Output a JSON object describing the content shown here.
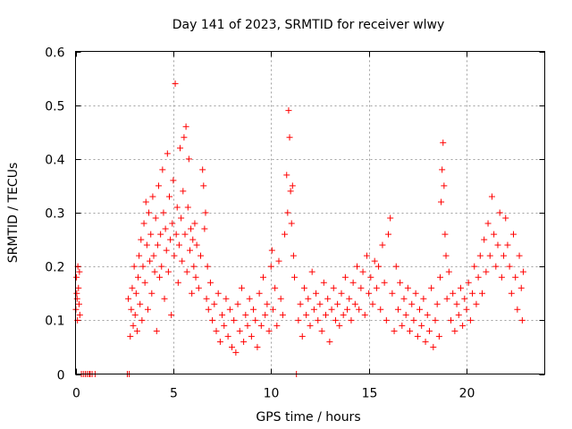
{
  "chart_data": {
    "type": "scatter",
    "title": "Day 141 of 2023, SRMTID for receiver wlwy",
    "xlabel": "GPS time / hours",
    "ylabel": "SRMTID / TECUs",
    "xlim": [
      0,
      24
    ],
    "ylim": [
      0,
      0.6
    ],
    "x_ticks": [
      0,
      5,
      10,
      15,
      20
    ],
    "x_tick_labels": [
      "0",
      "5",
      "10",
      "15",
      "20"
    ],
    "y_ticks": [
      0,
      0.1,
      0.2,
      0.3,
      0.4,
      0.5,
      0.6
    ],
    "y_tick_labels": [
      "0",
      "0.1",
      "0.2",
      "0.3",
      "0.4",
      "0.5",
      "0.6"
    ],
    "grid": true,
    "marker": "plus",
    "series": [
      {
        "name": "SRMTID",
        "color": "#ff0000",
        "points": [
          [
            0.02,
            0.12
          ],
          [
            0.05,
            0.18
          ],
          [
            0.08,
            0.14
          ],
          [
            0.1,
            0.1
          ],
          [
            0.12,
            0.2
          ],
          [
            0.15,
            0.16
          ],
          [
            0.18,
            0.13
          ],
          [
            0.2,
            0.19
          ],
          [
            0.22,
            0.11
          ],
          [
            0.06,
            0.15
          ],
          [
            0.3,
            0.0
          ],
          [
            0.4,
            0.0
          ],
          [
            0.5,
            0.0
          ],
          [
            0.6,
            0.0
          ],
          [
            0.7,
            0.0
          ],
          [
            0.75,
            0.0
          ],
          [
            0.85,
            0.0
          ],
          [
            1.0,
            0.0
          ],
          [
            2.65,
            0.0
          ],
          [
            2.75,
            0.0
          ],
          [
            2.7,
            0.14
          ],
          [
            2.8,
            0.07
          ],
          [
            2.85,
            0.12
          ],
          [
            2.9,
            0.16
          ],
          [
            2.95,
            0.09
          ],
          [
            3.0,
            0.2
          ],
          [
            3.05,
            0.11
          ],
          [
            3.1,
            0.15
          ],
          [
            3.15,
            0.08
          ],
          [
            3.2,
            0.18
          ],
          [
            3.25,
            0.22
          ],
          [
            3.3,
            0.13
          ],
          [
            3.35,
            0.25
          ],
          [
            3.4,
            0.1
          ],
          [
            3.45,
            0.2
          ],
          [
            3.5,
            0.28
          ],
          [
            3.55,
            0.17
          ],
          [
            3.6,
            0.32
          ],
          [
            3.65,
            0.24
          ],
          [
            3.7,
            0.12
          ],
          [
            3.75,
            0.3
          ],
          [
            3.8,
            0.21
          ],
          [
            3.85,
            0.26
          ],
          [
            3.9,
            0.15
          ],
          [
            3.95,
            0.33
          ],
          [
            4.0,
            0.22
          ],
          [
            4.05,
            0.19
          ],
          [
            4.1,
            0.29
          ],
          [
            4.15,
            0.08
          ],
          [
            4.2,
            0.24
          ],
          [
            4.25,
            0.35
          ],
          [
            4.3,
            0.18
          ],
          [
            4.35,
            0.26
          ],
          [
            4.4,
            0.2
          ],
          [
            4.45,
            0.38
          ],
          [
            4.5,
            0.3
          ],
          [
            4.55,
            0.14
          ],
          [
            4.6,
            0.27
          ],
          [
            4.65,
            0.23
          ],
          [
            4.7,
            0.41
          ],
          [
            4.75,
            0.19
          ],
          [
            4.8,
            0.33
          ],
          [
            4.85,
            0.25
          ],
          [
            4.9,
            0.11
          ],
          [
            4.95,
            0.28
          ],
          [
            5.0,
            0.36
          ],
          [
            5.05,
            0.22
          ],
          [
            5.1,
            0.54
          ],
          [
            5.15,
            0.26
          ],
          [
            5.2,
            0.31
          ],
          [
            5.25,
            0.17
          ],
          [
            5.3,
            0.24
          ],
          [
            5.35,
            0.42
          ],
          [
            5.4,
            0.29
          ],
          [
            5.45,
            0.21
          ],
          [
            5.5,
            0.34
          ],
          [
            5.55,
            0.44
          ],
          [
            5.6,
            0.26
          ],
          [
            5.65,
            0.46
          ],
          [
            5.7,
            0.19
          ],
          [
            5.75,
            0.31
          ],
          [
            5.8,
            0.4
          ],
          [
            5.85,
            0.23
          ],
          [
            5.9,
            0.27
          ],
          [
            5.95,
            0.15
          ],
          [
            6.0,
            0.25
          ],
          [
            6.05,
            0.2
          ],
          [
            6.1,
            0.28
          ],
          [
            6.15,
            0.18
          ],
          [
            6.2,
            0.24
          ],
          [
            6.3,
            0.16
          ],
          [
            6.4,
            0.22
          ],
          [
            6.5,
            0.38
          ],
          [
            6.55,
            0.35
          ],
          [
            6.6,
            0.27
          ],
          [
            6.65,
            0.3
          ],
          [
            6.7,
            0.14
          ],
          [
            6.75,
            0.2
          ],
          [
            6.8,
            0.12
          ],
          [
            6.9,
            0.17
          ],
          [
            7.0,
            0.1
          ],
          [
            7.1,
            0.13
          ],
          [
            7.2,
            0.08
          ],
          [
            7.3,
            0.15
          ],
          [
            7.4,
            0.06
          ],
          [
            7.5,
            0.11
          ],
          [
            7.6,
            0.09
          ],
          [
            7.7,
            0.14
          ],
          [
            7.8,
            0.07
          ],
          [
            7.9,
            0.12
          ],
          [
            8.0,
            0.05
          ],
          [
            8.1,
            0.1
          ],
          [
            8.2,
            0.04
          ],
          [
            8.3,
            0.13
          ],
          [
            8.4,
            0.08
          ],
          [
            8.5,
            0.16
          ],
          [
            8.6,
            0.06
          ],
          [
            8.7,
            0.11
          ],
          [
            8.8,
            0.09
          ],
          [
            8.9,
            0.14
          ],
          [
            9.0,
            0.07
          ],
          [
            9.1,
            0.12
          ],
          [
            9.2,
            0.1
          ],
          [
            9.3,
            0.05
          ],
          [
            9.4,
            0.15
          ],
          [
            9.5,
            0.09
          ],
          [
            9.6,
            0.18
          ],
          [
            9.7,
            0.11
          ],
          [
            9.8,
            0.13
          ],
          [
            9.9,
            0.08
          ],
          [
            10.0,
            0.2
          ],
          [
            10.05,
            0.23
          ],
          [
            10.1,
            0.12
          ],
          [
            10.2,
            0.16
          ],
          [
            10.3,
            0.09
          ],
          [
            10.4,
            0.21
          ],
          [
            10.5,
            0.14
          ],
          [
            10.6,
            0.11
          ],
          [
            10.7,
            0.26
          ],
          [
            10.8,
            0.37
          ],
          [
            10.85,
            0.3
          ],
          [
            10.9,
            0.49
          ],
          [
            10.95,
            0.44
          ],
          [
            11.0,
            0.34
          ],
          [
            11.05,
            0.28
          ],
          [
            11.1,
            0.35
          ],
          [
            11.15,
            0.22
          ],
          [
            11.2,
            0.18
          ],
          [
            11.3,
            0.0
          ],
          [
            11.4,
            0.1
          ],
          [
            11.5,
            0.13
          ],
          [
            11.6,
            0.07
          ],
          [
            11.7,
            0.16
          ],
          [
            11.8,
            0.11
          ],
          [
            11.9,
            0.14
          ],
          [
            12.0,
            0.09
          ],
          [
            12.1,
            0.19
          ],
          [
            12.2,
            0.12
          ],
          [
            12.3,
            0.15
          ],
          [
            12.4,
            0.1
          ],
          [
            12.5,
            0.13
          ],
          [
            12.6,
            0.08
          ],
          [
            12.7,
            0.17
          ],
          [
            12.8,
            0.11
          ],
          [
            12.9,
            0.14
          ],
          [
            13.0,
            0.06
          ],
          [
            13.1,
            0.12
          ],
          [
            13.2,
            0.16
          ],
          [
            13.3,
            0.1
          ],
          [
            13.4,
            0.13
          ],
          [
            13.5,
            0.09
          ],
          [
            13.6,
            0.15
          ],
          [
            13.7,
            0.11
          ],
          [
            13.8,
            0.18
          ],
          [
            13.9,
            0.12
          ],
          [
            14.0,
            0.14
          ],
          [
            14.1,
            0.1
          ],
          [
            14.2,
            0.17
          ],
          [
            14.3,
            0.13
          ],
          [
            14.4,
            0.2
          ],
          [
            14.5,
            0.12
          ],
          [
            14.6,
            0.16
          ],
          [
            14.7,
            0.19
          ],
          [
            14.8,
            0.11
          ],
          [
            14.9,
            0.22
          ],
          [
            15.0,
            0.15
          ],
          [
            15.1,
            0.18
          ],
          [
            15.2,
            0.13
          ],
          [
            15.3,
            0.21
          ],
          [
            15.4,
            0.16
          ],
          [
            15.5,
            0.2
          ],
          [
            15.6,
            0.12
          ],
          [
            15.7,
            0.24
          ],
          [
            15.8,
            0.17
          ],
          [
            15.9,
            0.1
          ],
          [
            16.0,
            0.26
          ],
          [
            16.1,
            0.29
          ],
          [
            16.2,
            0.15
          ],
          [
            16.3,
            0.08
          ],
          [
            16.4,
            0.2
          ],
          [
            16.5,
            0.12
          ],
          [
            16.6,
            0.17
          ],
          [
            16.7,
            0.09
          ],
          [
            16.8,
            0.14
          ],
          [
            16.9,
            0.11
          ],
          [
            17.0,
            0.16
          ],
          [
            17.1,
            0.08
          ],
          [
            17.2,
            0.13
          ],
          [
            17.3,
            0.1
          ],
          [
            17.4,
            0.15
          ],
          [
            17.5,
            0.07
          ],
          [
            17.6,
            0.12
          ],
          [
            17.7,
            0.09
          ],
          [
            17.8,
            0.14
          ],
          [
            17.9,
            0.06
          ],
          [
            18.0,
            0.11
          ],
          [
            18.1,
            0.08
          ],
          [
            18.2,
            0.16
          ],
          [
            18.3,
            0.05
          ],
          [
            18.4,
            0.1
          ],
          [
            18.5,
            0.13
          ],
          [
            18.6,
            0.07
          ],
          [
            18.65,
            0.18
          ],
          [
            18.7,
            0.32
          ],
          [
            18.75,
            0.38
          ],
          [
            18.8,
            0.43
          ],
          [
            18.85,
            0.35
          ],
          [
            18.9,
            0.26
          ],
          [
            18.95,
            0.22
          ],
          [
            19.0,
            0.14
          ],
          [
            19.1,
            0.19
          ],
          [
            19.2,
            0.1
          ],
          [
            19.3,
            0.15
          ],
          [
            19.4,
            0.08
          ],
          [
            19.5,
            0.13
          ],
          [
            19.6,
            0.11
          ],
          [
            19.7,
            0.16
          ],
          [
            19.8,
            0.09
          ],
          [
            19.9,
            0.14
          ],
          [
            20.0,
            0.12
          ],
          [
            20.1,
            0.17
          ],
          [
            20.2,
            0.1
          ],
          [
            20.3,
            0.15
          ],
          [
            20.4,
            0.2
          ],
          [
            20.5,
            0.13
          ],
          [
            20.6,
            0.18
          ],
          [
            20.7,
            0.22
          ],
          [
            20.8,
            0.15
          ],
          [
            20.9,
            0.25
          ],
          [
            21.0,
            0.19
          ],
          [
            21.1,
            0.28
          ],
          [
            21.2,
            0.22
          ],
          [
            21.3,
            0.33
          ],
          [
            21.4,
            0.26
          ],
          [
            21.5,
            0.2
          ],
          [
            21.6,
            0.24
          ],
          [
            21.7,
            0.3
          ],
          [
            21.8,
            0.18
          ],
          [
            21.9,
            0.22
          ],
          [
            22.0,
            0.29
          ],
          [
            22.1,
            0.24
          ],
          [
            22.2,
            0.2
          ],
          [
            22.3,
            0.15
          ],
          [
            22.4,
            0.26
          ],
          [
            22.5,
            0.18
          ],
          [
            22.6,
            0.12
          ],
          [
            22.7,
            0.22
          ],
          [
            22.8,
            0.16
          ],
          [
            22.85,
            0.1
          ],
          [
            22.9,
            0.19
          ]
        ]
      }
    ]
  }
}
